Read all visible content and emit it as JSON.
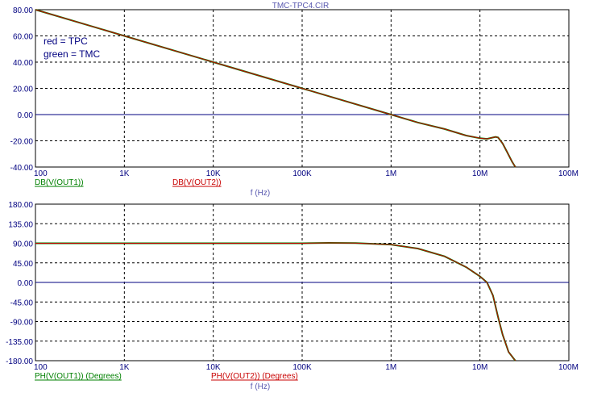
{
  "title": "TMC-TPC4.CIR",
  "colors": {
    "frame": "#000000",
    "grid": "#000000",
    "zero_line": "#000080",
    "tick_text": "#000080",
    "trace_tpc": "#c80000",
    "trace_tmc": "#008000",
    "label_green": "#008000",
    "label_red": "#c80000"
  },
  "chart_data": [
    {
      "type": "line",
      "x_scale": "log",
      "xlim": [
        100,
        100000000
      ],
      "ylim": [
        -40,
        80
      ],
      "x_ticks": [
        100,
        1000,
        10000,
        100000,
        1000000,
        10000000,
        100000000
      ],
      "x_tick_labels": [
        "100",
        "1K",
        "10K",
        "100K",
        "1M",
        "10M",
        "100M"
      ],
      "y_ticks": [
        -40,
        -20,
        0,
        20,
        40,
        60,
        80
      ],
      "y_tick_labels": [
        "-40.00",
        "-20.00",
        "0.00",
        "20.00",
        "40.00",
        "60.00",
        "80.00"
      ],
      "xlabel": "f (Hz)",
      "grid": true,
      "legend_text": [
        "red = TPC",
        "green = TMC"
      ],
      "trace_labels": [
        "DB(V(OUT1))",
        "DB(V(OUT2))"
      ],
      "series": [
        {
          "name": "DB(V(OUT1))",
          "x": [
            100,
            1000,
            10000,
            100000,
            1000000,
            2000000,
            4000000,
            7000000,
            10000000,
            12000000,
            14000000,
            15000000,
            16000000,
            18000000,
            20000000,
            23000000,
            25000000
          ],
          "y": [
            80,
            60,
            40,
            20,
            0,
            -6,
            -11,
            -16,
            -18,
            -18.5,
            -17.5,
            -17,
            -17.5,
            -22,
            -28,
            -36,
            -40
          ]
        },
        {
          "name": "DB(V(OUT2))",
          "x": [
            100,
            1000,
            10000,
            100000,
            1000000,
            2000000,
            4000000,
            7000000,
            10000000,
            12000000,
            14000000,
            15000000,
            16000000,
            18000000,
            20000000,
            23000000,
            25000000
          ],
          "y": [
            80,
            60,
            40,
            20,
            0,
            -6,
            -11,
            -16,
            -18,
            -18.5,
            -17.5,
            -17,
            -17.5,
            -22,
            -28,
            -36,
            -40
          ]
        }
      ]
    },
    {
      "type": "line",
      "x_scale": "log",
      "xlim": [
        100,
        100000000
      ],
      "ylim": [
        -180,
        180
      ],
      "x_ticks": [
        100,
        1000,
        10000,
        100000,
        1000000,
        10000000,
        100000000
      ],
      "x_tick_labels": [
        "100",
        "1K",
        "10K",
        "100K",
        "1M",
        "10M",
        "100M"
      ],
      "y_ticks": [
        -180,
        -135,
        -90,
        -45,
        0,
        45,
        90,
        135,
        180
      ],
      "y_tick_labels": [
        "-180.00",
        "-135.00",
        "-90.00",
        "-45.00",
        "0.00",
        "45.00",
        "90.00",
        "135.00",
        "180.00"
      ],
      "xlabel": "f (Hz)",
      "grid": true,
      "trace_labels": [
        "PH(V(OUT1)) (Degrees)",
        "PH(V(OUT2)) (Degrees)"
      ],
      "series": [
        {
          "name": "PH(V(OUT1)) (Degrees)",
          "x": [
            100,
            1000,
            10000,
            100000,
            200000,
            400000,
            1000000,
            2000000,
            4000000,
            7000000,
            10000000,
            12000000,
            14000000,
            16000000,
            18000000,
            21000000,
            25000000
          ],
          "y": [
            90,
            90,
            90,
            90,
            91,
            90.5,
            87,
            78,
            60,
            35,
            14,
            0,
            -30,
            -80,
            -120,
            -160,
            -180
          ]
        },
        {
          "name": "PH(V(OUT2)) (Degrees)",
          "x": [
            100,
            1000,
            10000,
            100000,
            200000,
            400000,
            1000000,
            2000000,
            4000000,
            7000000,
            10000000,
            12000000,
            14000000,
            16000000,
            18000000,
            21000000,
            25000000
          ],
          "y": [
            90,
            90,
            90,
            90,
            91,
            90.5,
            87,
            78,
            60,
            35,
            14,
            0,
            -30,
            -80,
            -120,
            -160,
            -180
          ]
        }
      ]
    }
  ]
}
